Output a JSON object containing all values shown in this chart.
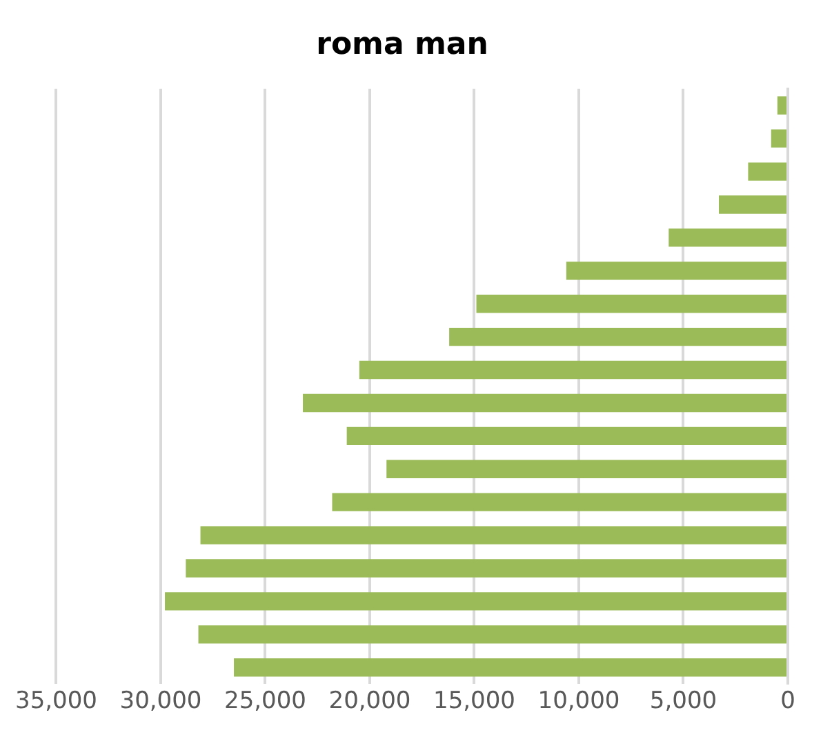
{
  "chart_data": {
    "type": "bar",
    "orientation": "horizontal",
    "title": "roma man",
    "categories": [
      null,
      null,
      null,
      null,
      null,
      null,
      null,
      null,
      null,
      null,
      null,
      null,
      null,
      null,
      null,
      null,
      null,
      null
    ],
    "values": [
      500,
      800,
      1900,
      3300,
      5700,
      10600,
      14900,
      16200,
      20500,
      23200,
      21100,
      19200,
      21800,
      28100,
      28800,
      29800,
      28200,
      26500
    ],
    "color": "#9bbb59",
    "xlim": [
      35000,
      0
    ],
    "xticks": [
      {
        "value": 35000,
        "label": "35,000"
      },
      {
        "value": 30000,
        "label": "30,000"
      },
      {
        "value": 25000,
        "label": "25,000"
      },
      {
        "value": 20000,
        "label": "20,000"
      },
      {
        "value": 15000,
        "label": "15,000"
      },
      {
        "value": 10000,
        "label": "10,000"
      },
      {
        "value": 5000,
        "label": "5,000"
      },
      0
    ],
    "grid": "x",
    "tick_labels": "x",
    "legend": false
  }
}
